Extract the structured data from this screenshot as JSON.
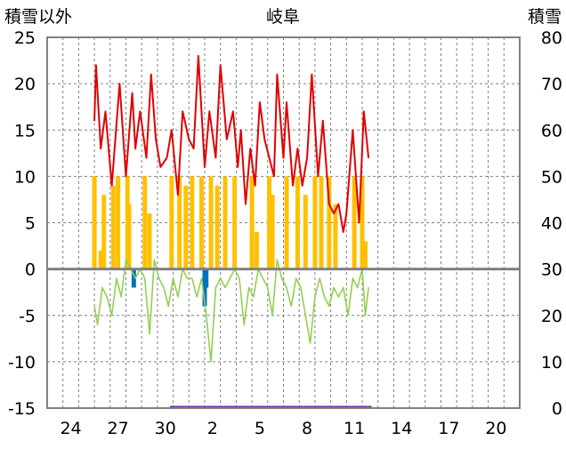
{
  "chart_data": {
    "type": "line",
    "title": "岐阜",
    "ylabel_left": "積雪以外",
    "ylabel_right": "積雪",
    "ylim_left": [
      -15,
      25
    ],
    "ylim_right": [
      0,
      80
    ],
    "y_ticks_left": [
      "25",
      "20",
      "15",
      "10",
      "5",
      "0",
      "-5",
      "-10",
      "-15"
    ],
    "y_ticks_right": [
      "80",
      "70",
      "60",
      "50",
      "40",
      "30",
      "20",
      "10",
      "0"
    ],
    "x_ticks": [
      "24",
      "27",
      "30",
      "2",
      "5",
      "8",
      "11",
      "14",
      "17",
      "20"
    ],
    "days_shown": 30,
    "grid": true,
    "colors": {
      "temperature": "#e00000",
      "precipitation": "#ffc000",
      "temperature_change": "#92d050",
      "snow_depth": "#7030a0",
      "blue_marks": "#0070c0",
      "zero_line": "#808080",
      "grid": "#808080"
    },
    "series": [
      {
        "key": "temperature",
        "points": [
          [
            3.0,
            16
          ],
          [
            3.1,
            22
          ],
          [
            3.4,
            13
          ],
          [
            3.7,
            17
          ],
          [
            4.1,
            9
          ],
          [
            4.6,
            20
          ],
          [
            5.0,
            10
          ],
          [
            5.4,
            19
          ],
          [
            5.6,
            13
          ],
          [
            5.9,
            17
          ],
          [
            6.3,
            12
          ],
          [
            6.6,
            21
          ],
          [
            6.9,
            14
          ],
          [
            7.2,
            11
          ],
          [
            7.6,
            12
          ],
          [
            7.9,
            15
          ],
          [
            8.3,
            8
          ],
          [
            8.6,
            17
          ],
          [
            9.0,
            14
          ],
          [
            9.3,
            13
          ],
          [
            9.6,
            23
          ],
          [
            10.0,
            11
          ],
          [
            10.3,
            17
          ],
          [
            10.7,
            12
          ],
          [
            11.0,
            22
          ],
          [
            11.4,
            14
          ],
          [
            11.8,
            17
          ],
          [
            12.1,
            11
          ],
          [
            12.3,
            15
          ],
          [
            12.6,
            7
          ],
          [
            12.9,
            13
          ],
          [
            13.2,
            9
          ],
          [
            13.5,
            18
          ],
          [
            13.8,
            14
          ],
          [
            14.1,
            12
          ],
          [
            14.4,
            10
          ],
          [
            14.6,
            21
          ],
          [
            15.0,
            12
          ],
          [
            15.2,
            18
          ],
          [
            15.6,
            9
          ],
          [
            15.9,
            13
          ],
          [
            16.2,
            9
          ],
          [
            16.5,
            12
          ],
          [
            16.8,
            21
          ],
          [
            17.2,
            10
          ],
          [
            17.5,
            16
          ],
          [
            17.9,
            7
          ],
          [
            18.2,
            6
          ],
          [
            18.5,
            7
          ],
          [
            18.8,
            4
          ],
          [
            19.0,
            6
          ],
          [
            19.4,
            15
          ],
          [
            19.8,
            5
          ],
          [
            20.1,
            17
          ],
          [
            20.4,
            12
          ]
        ]
      },
      {
        "key": "precipitation",
        "bars": [
          [
            3.0,
            10
          ],
          [
            3.4,
            2
          ],
          [
            3.6,
            8
          ],
          [
            4.2,
            9
          ],
          [
            4.5,
            10
          ],
          [
            5.1,
            10
          ],
          [
            5.2,
            7
          ],
          [
            6.2,
            10
          ],
          [
            6.5,
            6
          ],
          [
            7.9,
            10
          ],
          [
            8.4,
            10
          ],
          [
            8.8,
            9
          ],
          [
            9.2,
            10
          ],
          [
            9.8,
            10
          ],
          [
            10.4,
            10
          ],
          [
            10.8,
            9
          ],
          [
            11.3,
            10
          ],
          [
            11.9,
            10
          ],
          [
            13.0,
            10
          ],
          [
            13.3,
            4
          ],
          [
            14.1,
            10
          ],
          [
            14.3,
            8
          ],
          [
            15.2,
            10
          ],
          [
            15.9,
            10
          ],
          [
            16.4,
            8
          ],
          [
            17.0,
            10
          ],
          [
            17.4,
            10
          ],
          [
            17.9,
            10
          ],
          [
            18.3,
            7
          ],
          [
            19.5,
            10
          ],
          [
            20.0,
            10
          ],
          [
            20.2,
            3
          ]
        ]
      },
      {
        "key": "temperature_change",
        "points": [
          [
            3.0,
            -4
          ],
          [
            3.2,
            -6
          ],
          [
            3.5,
            -2
          ],
          [
            3.8,
            -3
          ],
          [
            4.1,
            -5
          ],
          [
            4.4,
            -1
          ],
          [
            4.7,
            -3
          ],
          [
            5.0,
            1
          ],
          [
            5.3,
            0
          ],
          [
            5.6,
            -1
          ],
          [
            5.9,
            0
          ],
          [
            6.2,
            -1
          ],
          [
            6.5,
            -7
          ],
          [
            6.8,
            1
          ],
          [
            7.1,
            -1
          ],
          [
            7.4,
            -2
          ],
          [
            7.7,
            -4
          ],
          [
            8.0,
            -1
          ],
          [
            8.3,
            -3
          ],
          [
            8.6,
            0
          ],
          [
            8.9,
            -1
          ],
          [
            9.2,
            -1
          ],
          [
            9.5,
            -3
          ],
          [
            9.8,
            -1
          ],
          [
            10.1,
            -5
          ],
          [
            10.4,
            -10
          ],
          [
            10.7,
            -2
          ],
          [
            11.0,
            -1
          ],
          [
            11.3,
            -2
          ],
          [
            11.6,
            -1
          ],
          [
            11.9,
            0
          ],
          [
            12.2,
            -1
          ],
          [
            12.5,
            -6
          ],
          [
            12.8,
            -2
          ],
          [
            13.1,
            -3
          ],
          [
            13.4,
            0
          ],
          [
            13.7,
            -1
          ],
          [
            14.0,
            -2
          ],
          [
            14.3,
            -5
          ],
          [
            14.6,
            1
          ],
          [
            14.9,
            -1
          ],
          [
            15.2,
            -2
          ],
          [
            15.5,
            -4
          ],
          [
            15.8,
            -1
          ],
          [
            16.1,
            -2
          ],
          [
            16.4,
            -5
          ],
          [
            16.7,
            -8
          ],
          [
            17.0,
            -3
          ],
          [
            17.3,
            -1
          ],
          [
            17.6,
            -3
          ],
          [
            17.9,
            -4
          ],
          [
            18.2,
            -2
          ],
          [
            18.5,
            -3
          ],
          [
            18.8,
            -2
          ],
          [
            19.1,
            -5
          ],
          [
            19.4,
            -1
          ],
          [
            19.7,
            -2
          ],
          [
            20.0,
            0
          ],
          [
            20.2,
            -5
          ],
          [
            20.4,
            -2
          ]
        ]
      },
      {
        "key": "blue_marks",
        "bars": [
          [
            5.5,
            -2
          ],
          [
            10.0,
            -4
          ],
          [
            10.1,
            -2
          ]
        ]
      },
      {
        "key": "snow_depth",
        "segments": [
          [
            7.8,
            20.6,
            0
          ]
        ]
      }
    ]
  }
}
